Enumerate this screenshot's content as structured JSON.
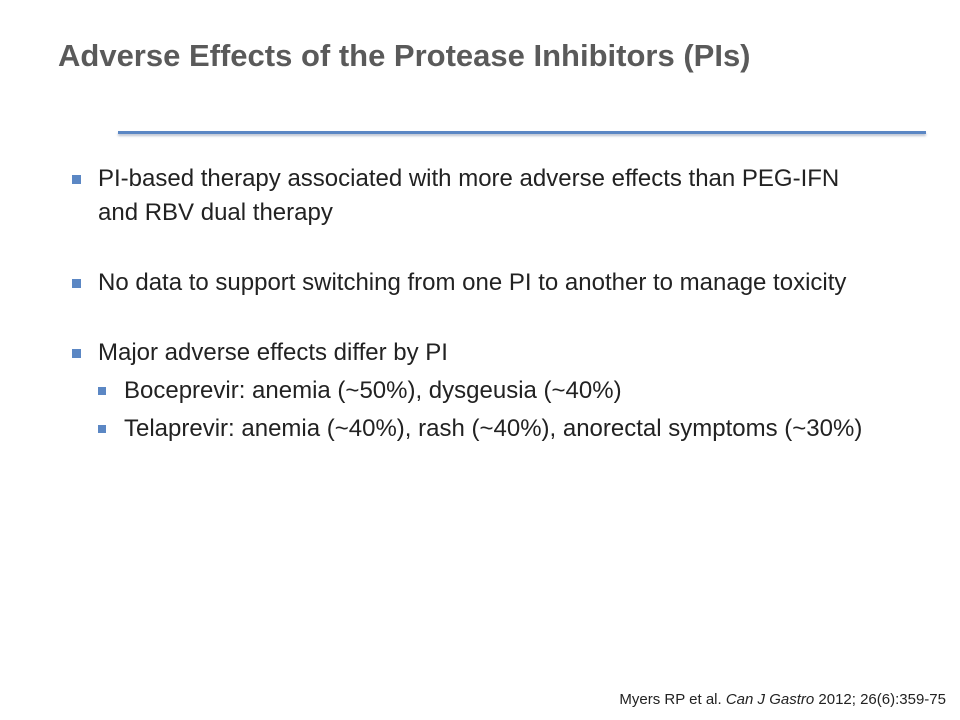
{
  "title": "Adverse Effects of the Protease Inhibitors (PIs)",
  "colors": {
    "title": "#5a5a5a",
    "accent": "#5b87c4",
    "text": "#222222"
  },
  "bullets": [
    {
      "text": "PI-based therapy associated with more adverse effects than PEG-IFN and RBV dual therapy"
    },
    {
      "text": "No data to support switching from one PI to another to manage toxicity"
    },
    {
      "text": "Major adverse effects differ by PI",
      "subitems": [
        "Boceprevir: anemia (~50%), dysgeusia (~40%)",
        "Telaprevir: anemia (~40%), rash (~40%), anorectal symptoms (~30%)"
      ]
    }
  ],
  "citation": {
    "authors": "Myers RP et al.",
    "journal": "Can J Gastro",
    "details": "2012; 26(6):359-75"
  }
}
